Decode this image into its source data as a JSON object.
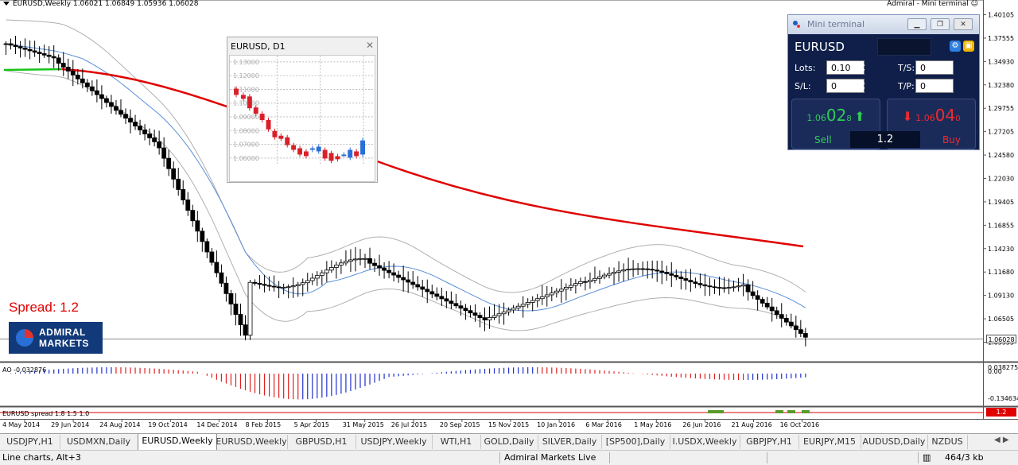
{
  "chart_header": {
    "symbol_info": "EURUSD,Weekly  1.06021 1.06849 1.05936 1.06028",
    "right_label": "Admiral - Mini terminal"
  },
  "spread_label": "Spread:  1.2",
  "logo": {
    "line1": "ADMIRAL",
    "line2": "MARKETS"
  },
  "price_axis": {
    "labels": [
      "1.40105",
      "1.37555",
      "1.34930",
      "1.32380",
      "1.29755",
      "1.27205",
      "1.24580",
      "1.22030",
      "1.19405",
      "1.16855",
      "1.14230",
      "1.11680",
      "1.09130",
      "1.06505",
      "1.03955"
    ],
    "current": "1.06028",
    "current_color": "#000000"
  },
  "time_axis": [
    "4 May 2014",
    "29 Jun 2014",
    "24 Aug 2014",
    "19 Oct 2014",
    "14 Dec 2014",
    "8 Feb 2015",
    "5 Apr 2015",
    "31 May 2015",
    "26 Jul 2015",
    "20 Sep 2015",
    "15 Nov 2015",
    "10 Jan 2016",
    "6 Mar 2016",
    "1 May 2016",
    "26 Jun 2016",
    "21 Aug 2016",
    "16 Oct 2016"
  ],
  "ao_panel": {
    "label": "AO -0.032876",
    "levels": [
      "0.038275",
      "0.00",
      "-0.134634"
    ]
  },
  "spread_panel": {
    "label": "EURUSD spread 1.8 1.5 1.0",
    "value": "1.2"
  },
  "mini_chart": {
    "title": "EURUSD, D1",
    "close": "✕",
    "levels": [
      "1.13000",
      "1.12000",
      "1.11000",
      "1.10000",
      "1.09000",
      "1.08000",
      "1.07000",
      "1.06000"
    ]
  },
  "mini_terminal": {
    "title": "Mini terminal",
    "symbol": "EURUSD",
    "lots_label": "Lots:",
    "lots_value": "0.10",
    "sl_label": "S/L:",
    "sl_value": "0",
    "ts_label": "T/S:",
    "ts_value": "0",
    "tp_label": "T/P:",
    "tp_value": "0",
    "sell": {
      "small": "1.06",
      "big": "02",
      "pip": "8",
      "label": "Sell"
    },
    "buy": {
      "small": "1.06",
      "big": "04",
      "pip": "0",
      "label": "Buy"
    },
    "spread": "1.2",
    "colors": {
      "sell": "#2ecc55",
      "buy": "#ef2b2b",
      "panel": "#0f1f4a"
    }
  },
  "tabs": [
    {
      "label": "USDJPY,H1",
      "active": false
    },
    {
      "label": "USDMXN,Daily",
      "active": false
    },
    {
      "label": "EURUSD,Weekly",
      "active": true
    },
    {
      "label": "EURUSD,Weekly",
      "active": false
    },
    {
      "label": "GBPUSD,H1",
      "active": false
    },
    {
      "label": "USDJPY,Weekly",
      "active": false
    },
    {
      "label": "WTI,H1",
      "active": false
    },
    {
      "label": "GOLD,Daily",
      "active": false
    },
    {
      "label": "SILVER,Daily",
      "active": false
    },
    {
      "label": "[SP500],Daily",
      "active": false
    },
    {
      "label": "I.USDX,Weekly",
      "active": false
    },
    {
      "label": "GBPJPY,H1",
      "active": false
    },
    {
      "label": "EURJPY,M15",
      "active": false
    },
    {
      "label": "AUDUSD,Daily",
      "active": false
    },
    {
      "label": "NZDUS",
      "active": false
    }
  ],
  "status_bar": {
    "hint": "Line charts, Alt+3",
    "profile": "Admiral Markets Live",
    "traffic": "464/3 kb"
  },
  "colors": {
    "ma_long": "#e00000",
    "ma_short": "#5a8fd8",
    "bands": "#b0b0b0",
    "ao_up": "#2030d0",
    "ao_down": "#e02020"
  }
}
